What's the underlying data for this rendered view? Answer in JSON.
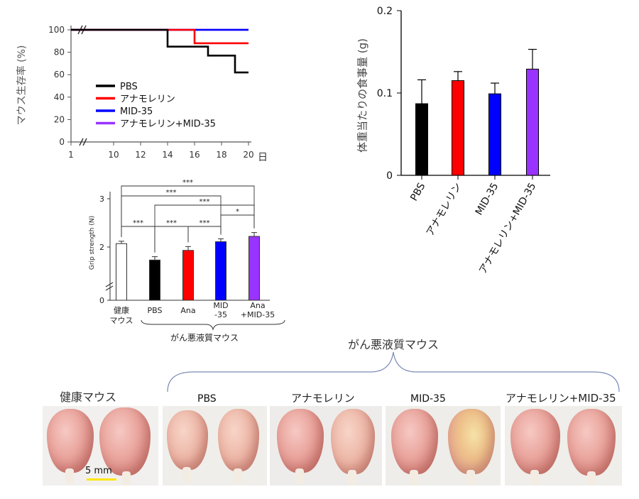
{
  "survival": {
    "ylabel": "マウス生存率 (%)",
    "xunit": "日",
    "yticks": [
      "0",
      "20",
      "40",
      "60",
      "80",
      "100"
    ],
    "xticks": [
      "1",
      "10",
      "12",
      "14",
      "16",
      "18",
      "20"
    ],
    "legend": [
      "PBS",
      "アナモレリン",
      "MID-35",
      "アナモレリン+MID-35"
    ]
  },
  "food": {
    "ylabel": "体重当たりの食事量 (g)",
    "yticks": [
      "0",
      "0.1",
      "0.2"
    ],
    "categories": [
      "PBS",
      "アナモレリン",
      "MID-35",
      "アナモレリン+MID-35"
    ]
  },
  "grip": {
    "ylabel": "Grip strength (N)",
    "yticks": [
      "0",
      "2",
      "3"
    ],
    "cat_labels": [
      {
        "l1": "健康",
        "l2": "マウス"
      },
      {
        "l1": "PBS",
        "l2": ""
      },
      {
        "l1": "Ana",
        "l2": ""
      },
      {
        "l1": "MID",
        "l2": "-35"
      },
      {
        "l1": "Ana",
        "l2": "+MID-35"
      }
    ],
    "group_label": "がん悪液質マウス",
    "sig": [
      "***",
      "***",
      "***",
      "*",
      "***",
      "***",
      "***"
    ]
  },
  "photos": {
    "group_title": "がん悪液質マウス",
    "panel_titles": [
      "健康マウス",
      "PBS",
      "アナモレリン",
      "MID-35",
      "アナモレリン+MID-35"
    ],
    "scale_label": "5 mm"
  },
  "colors": {
    "PBS": "#000000",
    "Anamorelin": "#ff0000",
    "MID-35": "#0000ff",
    "Combo": "#9933ff",
    "Healthy": "#ffffff"
  },
  "chart_data": [
    {
      "type": "line",
      "ylabel": "マウス生存率 (%)",
      "xlabel": "日",
      "xlim": [
        1,
        20
      ],
      "ylim": [
        0,
        100
      ],
      "series": [
        {
          "name": "PBS",
          "x": [
            1,
            14,
            14,
            17,
            17,
            19,
            19,
            20
          ],
          "y": [
            100,
            100,
            85,
            85,
            77,
            77,
            62,
            62
          ]
        },
        {
          "name": "アナモレリン",
          "x": [
            1,
            16,
            16,
            20
          ],
          "y": [
            100,
            100,
            88,
            88
          ]
        },
        {
          "name": "MID-35",
          "x": [
            1,
            20
          ],
          "y": [
            100,
            100
          ]
        },
        {
          "name": "アナモレリン+MID-35",
          "x": [
            1,
            20
          ],
          "y": [
            100,
            100
          ]
        }
      ]
    },
    {
      "type": "bar",
      "ylabel": "体重当たりの食事量 (g)",
      "ylim": [
        0,
        0.2
      ],
      "categories": [
        "PBS",
        "アナモレリン",
        "MID-35",
        "アナモレリン+MID-35"
      ],
      "values": [
        0.087,
        0.115,
        0.099,
        0.129
      ],
      "errors": [
        0.029,
        0.011,
        0.013,
        0.024
      ]
    },
    {
      "type": "bar",
      "ylabel": "Grip strength (N)",
      "ylim": [
        0,
        3
      ],
      "categories": [
        "健康マウス",
        "PBS",
        "Ana",
        "MID-35",
        "Ana+MID-35"
      ],
      "values": [
        2.07,
        1.73,
        1.93,
        2.11,
        2.22
      ],
      "errors": [
        0.05,
        0.07,
        0.08,
        0.06,
        0.08
      ]
    }
  ]
}
